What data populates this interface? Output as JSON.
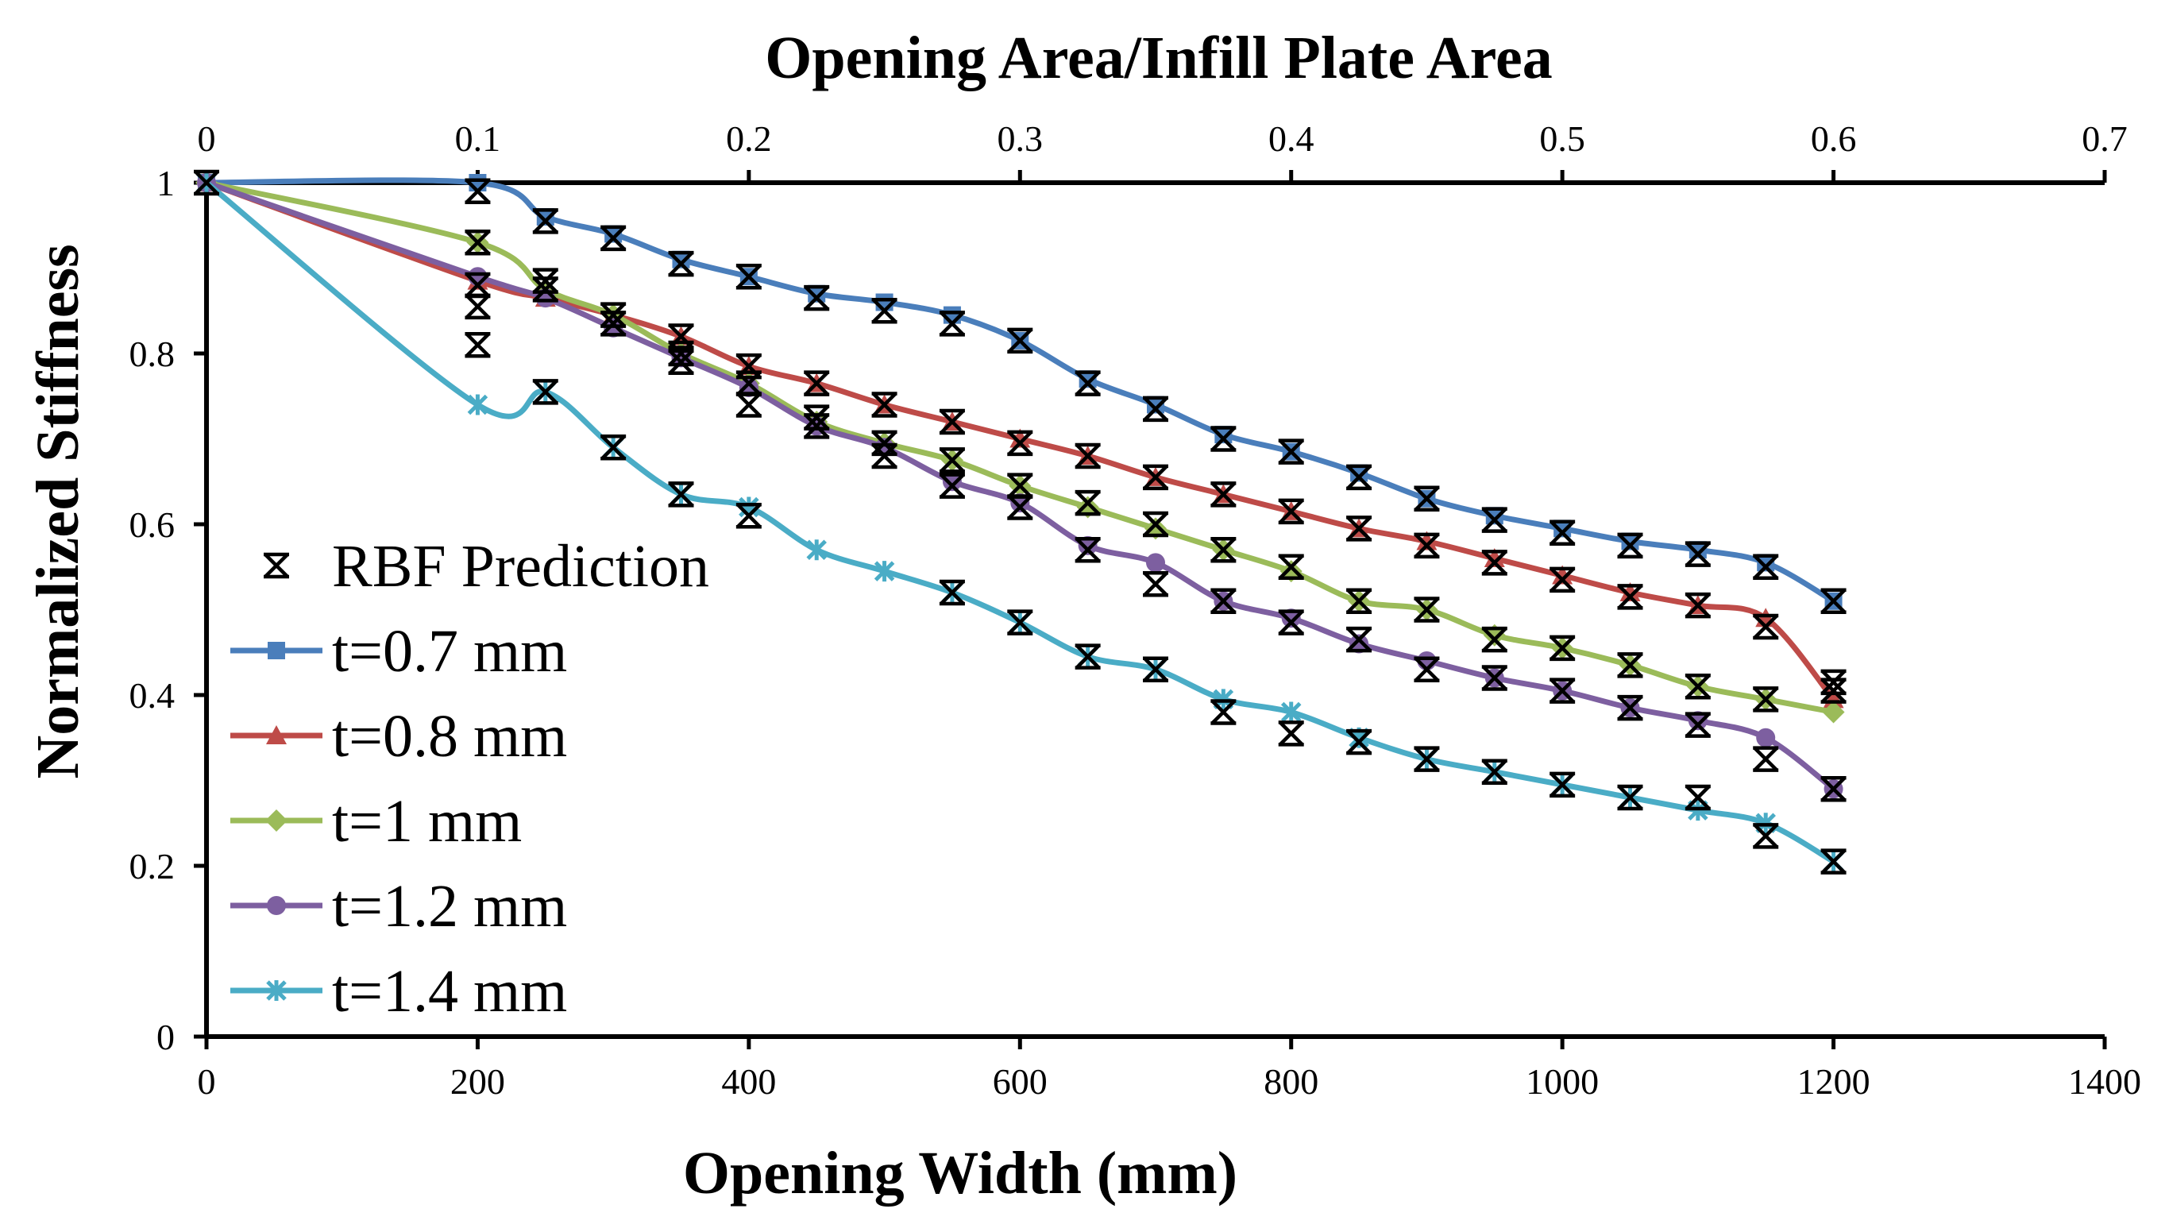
{
  "chart_data": {
    "type": "line",
    "title": "",
    "xlabel": "Opening Width (mm)",
    "ylabel": "Normalized Stiffness",
    "x2label": "Opening Area/Infill Plate Area",
    "xlim": [
      0,
      1400
    ],
    "ylim": [
      0,
      1
    ],
    "x2lim": [
      0,
      0.7
    ],
    "xticks": [
      "0",
      "200",
      "400",
      "600",
      "800",
      "1000",
      "1200",
      "1400"
    ],
    "x2ticks": [
      "0",
      "0.1",
      "0.2",
      "0.3",
      "0.4",
      "0.5",
      "0.6",
      "0.7"
    ],
    "yticks": [
      "0",
      "0.2",
      "0.4",
      "0.6",
      "0.8",
      "1"
    ],
    "grid": false,
    "legend_position": "lower-left",
    "series": [
      {
        "name": "t=0.7 mm",
        "color": "#4a7ebb",
        "marker": "square",
        "x": [
          0,
          200,
          250,
          300,
          350,
          400,
          450,
          500,
          550,
          600,
          650,
          700,
          750,
          800,
          850,
          900,
          950,
          1000,
          1050,
          1100,
          1150,
          1200
        ],
        "y": [
          1.0,
          1.0,
          0.96,
          0.94,
          0.91,
          0.89,
          0.87,
          0.86,
          0.845,
          0.815,
          0.77,
          0.74,
          0.705,
          0.685,
          0.66,
          0.63,
          0.61,
          0.595,
          0.58,
          0.57,
          0.555,
          0.51
        ]
      },
      {
        "name": "t=0.8 mm",
        "color": "#be4b48",
        "marker": "triangle",
        "x": [
          0,
          200,
          250,
          300,
          350,
          400,
          450,
          500,
          550,
          600,
          650,
          700,
          750,
          800,
          850,
          900,
          950,
          1000,
          1050,
          1100,
          1150,
          1200
        ],
        "y": [
          1.0,
          0.885,
          0.865,
          0.845,
          0.82,
          0.785,
          0.765,
          0.74,
          0.72,
          0.7,
          0.68,
          0.655,
          0.635,
          0.615,
          0.595,
          0.58,
          0.56,
          0.54,
          0.52,
          0.505,
          0.49,
          0.395
        ]
      },
      {
        "name": "t=1 mm",
        "color": "#9bbb59",
        "marker": "diamond",
        "x": [
          0,
          200,
          250,
          300,
          350,
          400,
          450,
          500,
          550,
          600,
          650,
          700,
          750,
          800,
          850,
          900,
          950,
          1000,
          1050,
          1100,
          1150,
          1200
        ],
        "y": [
          1.0,
          0.93,
          0.875,
          0.845,
          0.8,
          0.765,
          0.72,
          0.695,
          0.675,
          0.645,
          0.62,
          0.595,
          0.57,
          0.545,
          0.51,
          0.5,
          0.47,
          0.455,
          0.435,
          0.41,
          0.395,
          0.38
        ]
      },
      {
        "name": "t=1.2 mm",
        "color": "#7d5fa0",
        "marker": "circle",
        "x": [
          0,
          200,
          250,
          300,
          350,
          400,
          450,
          500,
          550,
          600,
          650,
          700,
          750,
          800,
          850,
          900,
          950,
          1000,
          1050,
          1100,
          1150,
          1200
        ],
        "y": [
          1.0,
          0.89,
          0.865,
          0.83,
          0.795,
          0.76,
          0.715,
          0.69,
          0.65,
          0.625,
          0.575,
          0.555,
          0.51,
          0.49,
          0.46,
          0.44,
          0.42,
          0.405,
          0.385,
          0.37,
          0.35,
          0.29
        ]
      },
      {
        "name": "t=1.4 mm",
        "color": "#4aacc6",
        "marker": "asterisk",
        "x": [
          0,
          200,
          250,
          300,
          350,
          400,
          450,
          500,
          550,
          600,
          650,
          700,
          750,
          800,
          850,
          900,
          950,
          1000,
          1050,
          1100,
          1150,
          1200
        ],
        "y": [
          1.0,
          0.74,
          0.755,
          0.69,
          0.635,
          0.62,
          0.57,
          0.545,
          0.52,
          0.485,
          0.445,
          0.43,
          0.395,
          0.38,
          0.35,
          0.325,
          0.31,
          0.295,
          0.28,
          0.265,
          0.25,
          0.205
        ]
      }
    ],
    "rbf_prediction": {
      "name": "RBF Prediction",
      "color": "#000000",
      "marker": "cross",
      "x": [
        0,
        200,
        200,
        200,
        200,
        200,
        250,
        250,
        250,
        250,
        300,
        300,
        300,
        300,
        350,
        350,
        350,
        350,
        350,
        400,
        400,
        400,
        400,
        400,
        450,
        450,
        450,
        450,
        500,
        500,
        500,
        500,
        550,
        550,
        550,
        550,
        550,
        600,
        600,
        600,
        600,
        600,
        650,
        650,
        650,
        650,
        650,
        700,
        700,
        700,
        700,
        700,
        750,
        750,
        750,
        750,
        750,
        800,
        800,
        800,
        800,
        800,
        850,
        850,
        850,
        850,
        850,
        900,
        900,
        900,
        900,
        900,
        950,
        950,
        950,
        950,
        950,
        1000,
        1000,
        1000,
        1000,
        1000,
        1050,
        1050,
        1050,
        1050,
        1050,
        1100,
        1100,
        1100,
        1100,
        1100,
        1150,
        1150,
        1150,
        1150,
        1150,
        1200,
        1200,
        1200,
        1200,
        1200
      ],
      "y": [
        1.0,
        0.99,
        0.93,
        0.88,
        0.855,
        0.81,
        0.955,
        0.885,
        0.875,
        0.755,
        0.935,
        0.845,
        0.835,
        0.69,
        0.905,
        0.82,
        0.8,
        0.79,
        0.635,
        0.89,
        0.785,
        0.765,
        0.74,
        0.61,
        0.865,
        0.765,
        0.725,
        0.715,
        0.85,
        0.74,
        0.695,
        0.68,
        0.835,
        0.72,
        0.675,
        0.645,
        0.52,
        0.815,
        0.695,
        0.645,
        0.62,
        0.485,
        0.765,
        0.68,
        0.625,
        0.57,
        0.445,
        0.735,
        0.655,
        0.6,
        0.53,
        0.43,
        0.7,
        0.635,
        0.57,
        0.51,
        0.38,
        0.685,
        0.615,
        0.55,
        0.485,
        0.355,
        0.655,
        0.595,
        0.51,
        0.465,
        0.345,
        0.63,
        0.575,
        0.5,
        0.43,
        0.325,
        0.605,
        0.555,
        0.465,
        0.42,
        0.31,
        0.59,
        0.535,
        0.455,
        0.405,
        0.295,
        0.575,
        0.515,
        0.435,
        0.385,
        0.28,
        0.565,
        0.505,
        0.41,
        0.365,
        0.28,
        0.55,
        0.48,
        0.395,
        0.325,
        0.235,
        0.51,
        0.415,
        0.405,
        0.29,
        0.205
      ]
    }
  }
}
